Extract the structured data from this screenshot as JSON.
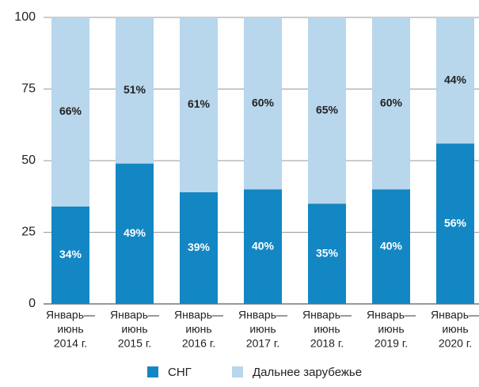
{
  "chart_data": {
    "type": "stacked_bar",
    "categories": [
      [
        "Январь—",
        "июнь",
        "2014 г."
      ],
      [
        "Январь—",
        "июнь",
        "2015 г."
      ],
      [
        "Январь—",
        "июнь",
        "2016 г."
      ],
      [
        "Январь—",
        "июнь",
        "2017 г."
      ],
      [
        "Январь—",
        "июнь",
        "2018 г."
      ],
      [
        "Январь—",
        "июнь",
        "2019 г."
      ],
      [
        "Январь—",
        "июнь",
        "2020 г."
      ]
    ],
    "series": [
      {
        "name": "СНГ",
        "color": "#1387c3",
        "values": [
          34,
          49,
          39,
          40,
          35,
          40,
          56
        ],
        "value_labels": [
          "34%",
          "49%",
          "39%",
          "40%",
          "35%",
          "40%",
          "56%"
        ]
      },
      {
        "name": "Дальнее зарубежье",
        "color": "#b8d6ec",
        "values": [
          66,
          51,
          61,
          60,
          65,
          60,
          44
        ],
        "value_labels": [
          "66%",
          "51%",
          "61%",
          "60%",
          "65%",
          "60%",
          "44%"
        ]
      }
    ],
    "ylim": [
      0,
      100
    ],
    "yticks": [
      0,
      25,
      50,
      75,
      100
    ],
    "grid": true,
    "legend": "bottom"
  }
}
